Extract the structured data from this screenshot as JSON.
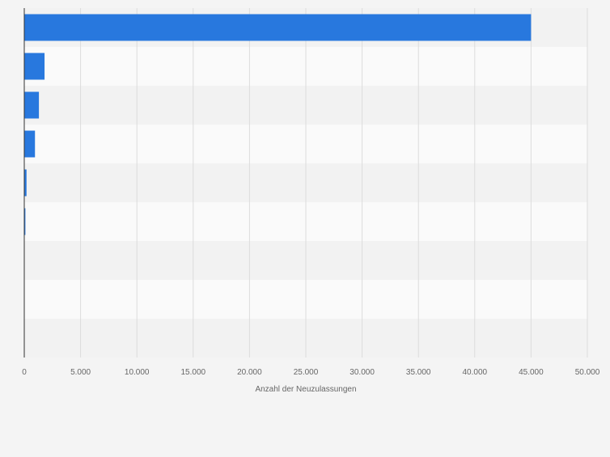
{
  "chart_data": {
    "type": "bar",
    "orientation": "horizontal",
    "categories": [
      "",
      "",
      "",
      "",
      "",
      "",
      "",
      "",
      ""
    ],
    "values": [
      45000,
      1800,
      1300,
      950,
      200,
      100,
      0,
      0,
      0
    ],
    "xlabel": "Anzahl der Neuzulassungen",
    "xlim": [
      0,
      50000
    ],
    "ticks": [
      0,
      5000,
      10000,
      15000,
      20000,
      25000,
      30000,
      35000,
      40000,
      45000,
      50000
    ],
    "tick_labels": [
      "0",
      "5.000",
      "10.000",
      "15.000",
      "20.000",
      "25.000",
      "30.000",
      "35.000",
      "40.000",
      "45.000",
      "50.000"
    ],
    "grid": true,
    "colors": {
      "bar": "#2878de",
      "band_light": "#fafafa",
      "band_dark": "#f2f2f2",
      "grid": "#dcdcdc",
      "axis": "#333333",
      "text": "#666666",
      "background": "#f4f4f4"
    }
  }
}
